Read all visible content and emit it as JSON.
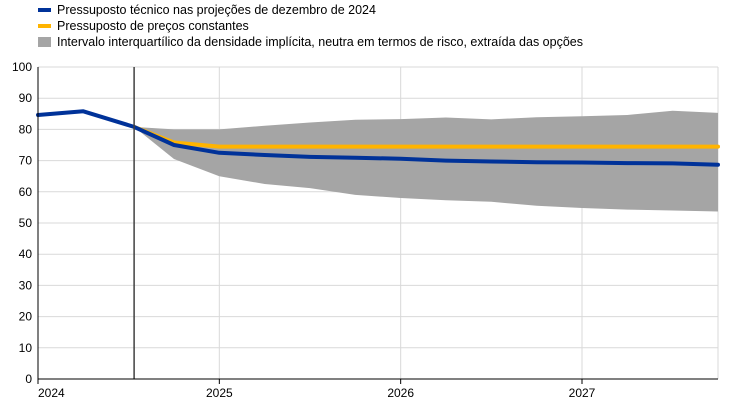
{
  "chart_data": {
    "type": "line",
    "title": "",
    "xlabel": "",
    "ylabel": "",
    "ylim": [
      0,
      100
    ],
    "yticks": [
      0,
      10,
      20,
      30,
      40,
      50,
      60,
      70,
      80,
      90,
      100
    ],
    "xlim": [
      2024.0,
      2027.75
    ],
    "xticks": [
      {
        "value": 2024,
        "label": "2024"
      },
      {
        "value": 2025,
        "label": "2025"
      },
      {
        "value": 2026,
        "label": "2026"
      },
      {
        "value": 2027,
        "label": "2027"
      }
    ],
    "grid": true,
    "legend_position": "top-left",
    "vertical_marker_x": 2024.53,
    "series": [
      {
        "name": "Pressuposto técnico nas projeções de dezembro de 2024",
        "color": "#003299",
        "x": [
          2024.0,
          2024.25,
          2024.53,
          2024.75,
          2025.0,
          2025.25,
          2025.5,
          2025.75,
          2026.0,
          2026.25,
          2026.5,
          2026.75,
          2027.0,
          2027.25,
          2027.5,
          2027.75
        ],
        "values": [
          84.6,
          85.8,
          80.8,
          75.0,
          72.5,
          71.8,
          71.2,
          70.9,
          70.6,
          70.0,
          69.7,
          69.5,
          69.4,
          69.2,
          69.1,
          68.7
        ]
      },
      {
        "name": "Pressuposto de preços constantes",
        "color": "#FFB400",
        "x": [
          2024.53,
          2024.75,
          2025.0,
          2025.25,
          2025.5,
          2025.75,
          2026.0,
          2026.25,
          2026.5,
          2026.75,
          2027.0,
          2027.25,
          2027.5,
          2027.75
        ],
        "values": [
          80.8,
          75.8,
          74.5,
          74.5,
          74.5,
          74.5,
          74.5,
          74.5,
          74.5,
          74.5,
          74.5,
          74.5,
          74.5,
          74.5
        ]
      }
    ],
    "band": {
      "name": "Intervalo interquartílico da densidade implícita, neutra em termos de risco, extraída das opções",
      "color": "#A5A5A5",
      "x": [
        2024.53,
        2024.75,
        2025.0,
        2025.25,
        2025.5,
        2025.75,
        2026.0,
        2026.25,
        2026.5,
        2026.75,
        2027.0,
        2027.25,
        2027.5,
        2027.75
      ],
      "upper": [
        80.8,
        80.0,
        80.0,
        81.2,
        82.2,
        83.1,
        83.3,
        83.8,
        83.2,
        83.9,
        84.2,
        84.6,
        86.0,
        85.3
      ],
      "lower": [
        80.8,
        70.5,
        65.0,
        62.5,
        61.2,
        59.0,
        58.0,
        57.3,
        56.8,
        55.5,
        54.8,
        54.3,
        54.0,
        53.7
      ]
    }
  }
}
